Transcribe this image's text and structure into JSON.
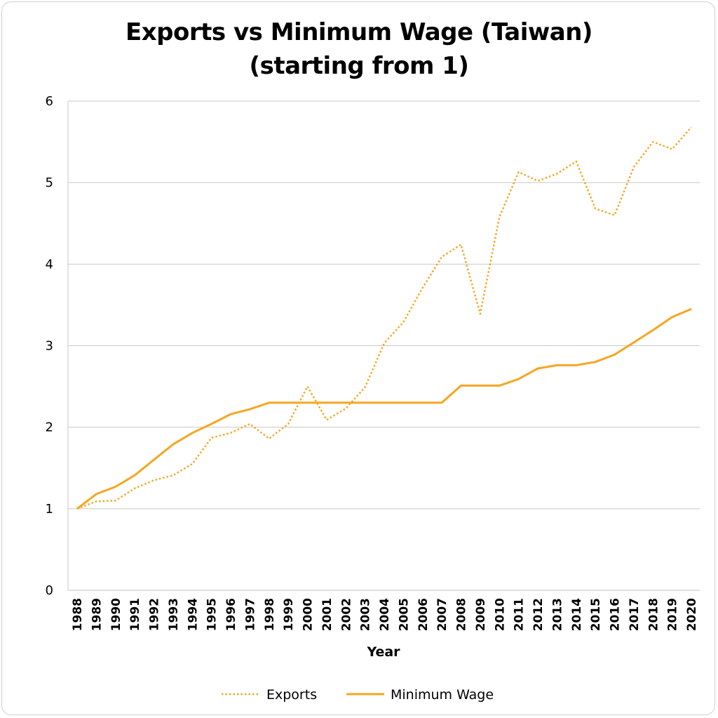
{
  "chart_data": {
    "type": "line",
    "title_line1": "Exports vs Minimum Wage (Taiwan)",
    "title_line2": "(starting from 1)",
    "xlabel": "Year",
    "ylabel": "",
    "ylim": [
      0,
      6
    ],
    "yticks": [
      0,
      1,
      2,
      3,
      4,
      5,
      6
    ],
    "grid": true,
    "legend_position": "bottom",
    "x": [
      "1988",
      "1989",
      "1990",
      "1991",
      "1992",
      "1993",
      "1994",
      "1995",
      "1996",
      "1997",
      "1998",
      "1999",
      "2000",
      "2001",
      "2002",
      "2003",
      "2004",
      "2005",
      "2006",
      "2007",
      "2008",
      "2009",
      "2010",
      "2011",
      "2012",
      "2013",
      "2014",
      "2015",
      "2016",
      "2017",
      "2018",
      "2019",
      "2020"
    ],
    "series": [
      {
        "name": "Exports",
        "style": "dotted",
        "color": "#F5A623",
        "values": [
          1.0,
          1.09,
          1.1,
          1.25,
          1.35,
          1.41,
          1.55,
          1.87,
          1.93,
          2.04,
          1.86,
          2.04,
          2.5,
          2.09,
          2.23,
          2.49,
          3.03,
          3.29,
          3.71,
          4.09,
          4.24,
          3.39,
          4.58,
          5.13,
          5.02,
          5.11,
          5.26,
          4.68,
          4.6,
          5.19,
          5.5,
          5.41,
          5.68
        ]
      },
      {
        "name": "Minimum Wage",
        "style": "solid",
        "color": "#F5A623",
        "values": [
          1.0,
          1.18,
          1.27,
          1.41,
          1.6,
          1.79,
          1.93,
          2.04,
          2.16,
          2.22,
          2.3,
          2.3,
          2.3,
          2.3,
          2.3,
          2.3,
          2.3,
          2.3,
          2.3,
          2.3,
          2.51,
          2.51,
          2.51,
          2.59,
          2.72,
          2.76,
          2.76,
          2.8,
          2.89,
          3.04,
          3.19,
          3.35,
          3.45
        ]
      }
    ]
  }
}
